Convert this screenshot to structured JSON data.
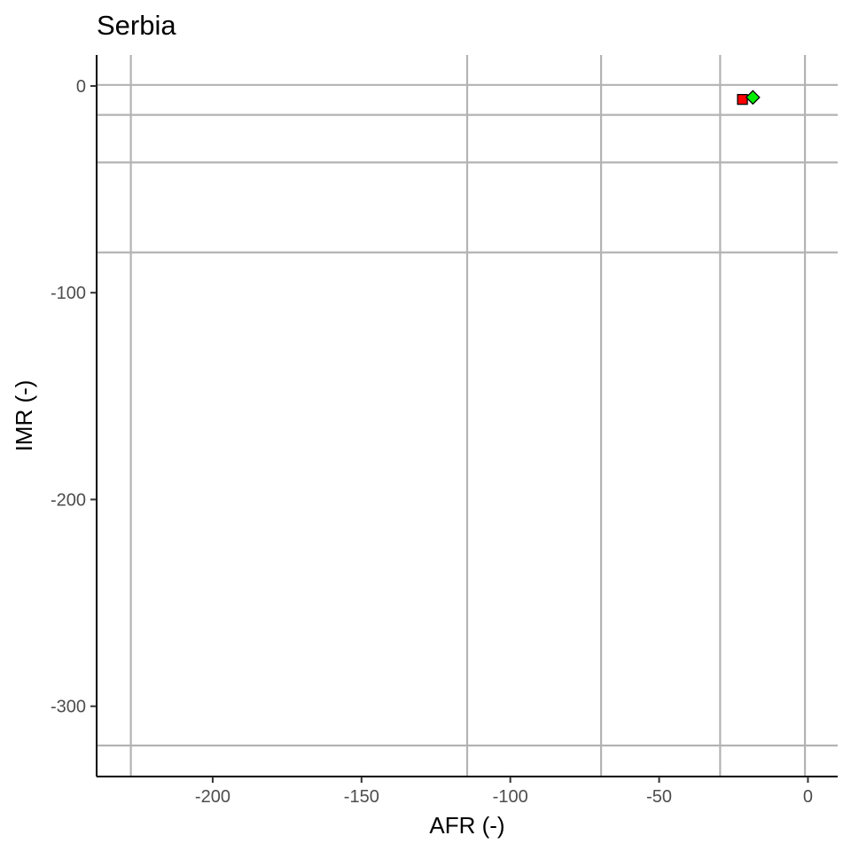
{
  "chart_data": {
    "type": "scatter",
    "title": "Serbia",
    "xlabel": "AFR (-)",
    "ylabel": "IMR (-)",
    "xlim": [
      -239,
      10
    ],
    "ylim": [
      -334,
      15
    ],
    "x_ticks": [
      {
        "value": -200,
        "label": "-200"
      },
      {
        "value": -150,
        "label": "-150"
      },
      {
        "value": -100,
        "label": "-100"
      },
      {
        "value": -50,
        "label": "-50"
      },
      {
        "value": 0,
        "label": "0"
      }
    ],
    "y_ticks": [
      {
        "value": 0,
        "label": "0"
      },
      {
        "value": -100,
        "label": "-100"
      },
      {
        "value": -200,
        "label": "-200"
      },
      {
        "value": -300,
        "label": "-300"
      }
    ],
    "reference_lines_x": [
      -227.5,
      -114.5,
      -69.5,
      -29.5,
      -1
    ],
    "reference_lines_y": [
      0.5,
      -14,
      -37,
      -80.5,
      -319
    ],
    "reference_line_color": "#b3b3b3",
    "grid": false,
    "series": [
      {
        "marker": "square",
        "color": "#ff0000",
        "points": [
          {
            "x": -22,
            "y": -6.5
          }
        ]
      },
      {
        "marker": "diamond",
        "color": "#00ee00",
        "points": [
          {
            "x": -18.5,
            "y": -5.5
          }
        ]
      }
    ]
  }
}
